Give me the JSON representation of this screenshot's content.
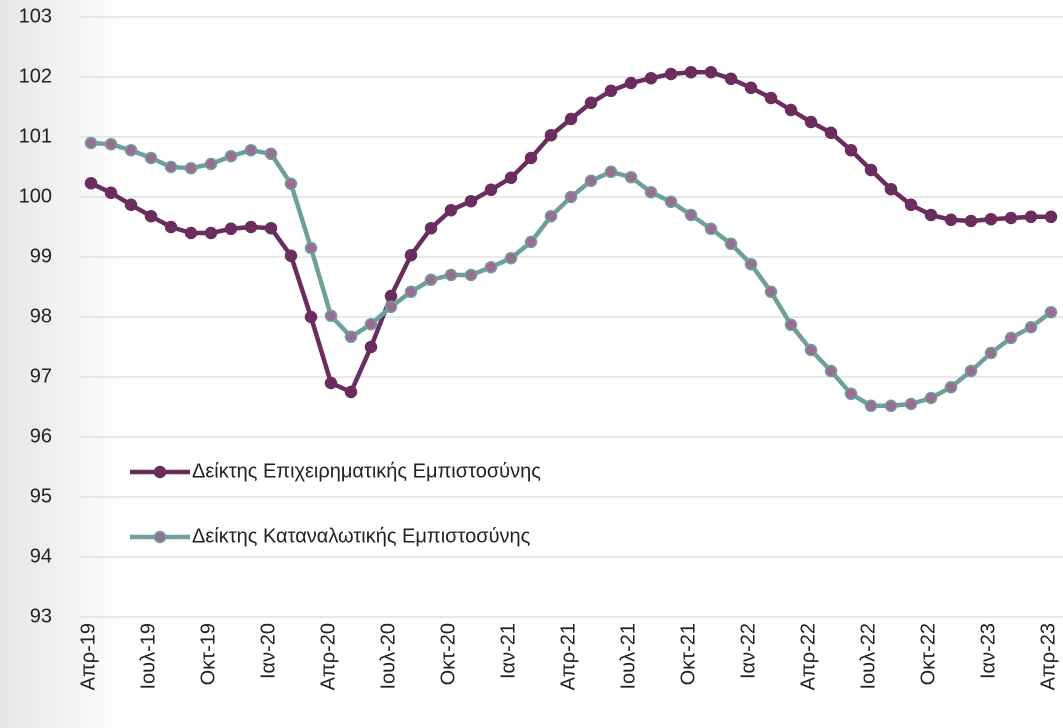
{
  "chart_data": {
    "type": "line",
    "categories": [
      "Απρ-19",
      null,
      null,
      "Ιουλ-19",
      null,
      null,
      "Οκτ-19",
      null,
      null,
      "Ιαν-20",
      null,
      null,
      "Απρ-20",
      null,
      null,
      "Ιουλ-20",
      null,
      null,
      "Οκτ-20",
      null,
      null,
      "Ιαν-21",
      null,
      null,
      "Απρ-21",
      null,
      null,
      "Ιουλ-21",
      null,
      null,
      "Οκτ-21",
      null,
      null,
      "Ιαν-22",
      null,
      null,
      "Απρ-22",
      null,
      null,
      "Ιουλ-22",
      null,
      null,
      "Οκτ-22",
      null,
      null,
      "Ιαν-23",
      null,
      null,
      "Απρ-23"
    ],
    "series": [
      {
        "name": "Δείκτης Επιχειρηματικής Εμπιστοσύνης",
        "color": "#6b2d5e",
        "marker_color": "#6b2d5e",
        "values": [
          100.23,
          100.07,
          99.87,
          99.68,
          99.5,
          99.4,
          99.4,
          99.47,
          99.5,
          99.48,
          99.02,
          98.0,
          96.9,
          96.75,
          97.5,
          98.35,
          99.03,
          99.48,
          99.78,
          99.93,
          100.12,
          100.32,
          100.65,
          101.03,
          101.3,
          101.57,
          101.77,
          101.9,
          101.98,
          102.05,
          102.08,
          102.08,
          101.97,
          101.82,
          101.65,
          101.45,
          101.25,
          101.07,
          100.78,
          100.45,
          100.13,
          99.87,
          99.7,
          99.62,
          99.6,
          99.63,
          99.65,
          99.67,
          99.67
        ]
      },
      {
        "name": "Δείκτης Καταναλωτικής Εμπιστοσύνης",
        "color": "#6e9f99",
        "marker_color": "#9c6d92",
        "values": [
          100.9,
          100.88,
          100.78,
          100.65,
          100.5,
          100.48,
          100.55,
          100.68,
          100.78,
          100.72,
          100.22,
          99.15,
          98.02,
          97.67,
          97.88,
          98.17,
          98.42,
          98.62,
          98.7,
          98.7,
          98.83,
          98.98,
          99.25,
          99.68,
          100.0,
          100.27,
          100.42,
          100.33,
          100.08,
          99.92,
          99.7,
          99.47,
          99.22,
          98.88,
          98.42,
          97.87,
          97.45,
          97.1,
          96.72,
          96.52,
          96.52,
          96.55,
          96.65,
          96.83,
          97.1,
          97.4,
          97.65,
          97.83,
          98.08
        ]
      }
    ],
    "ylim": [
      93,
      103
    ],
    "yticks": [
      93,
      94,
      95,
      96,
      97,
      98,
      99,
      100,
      101,
      102,
      103
    ],
    "grid": true,
    "legend": "lower left"
  }
}
